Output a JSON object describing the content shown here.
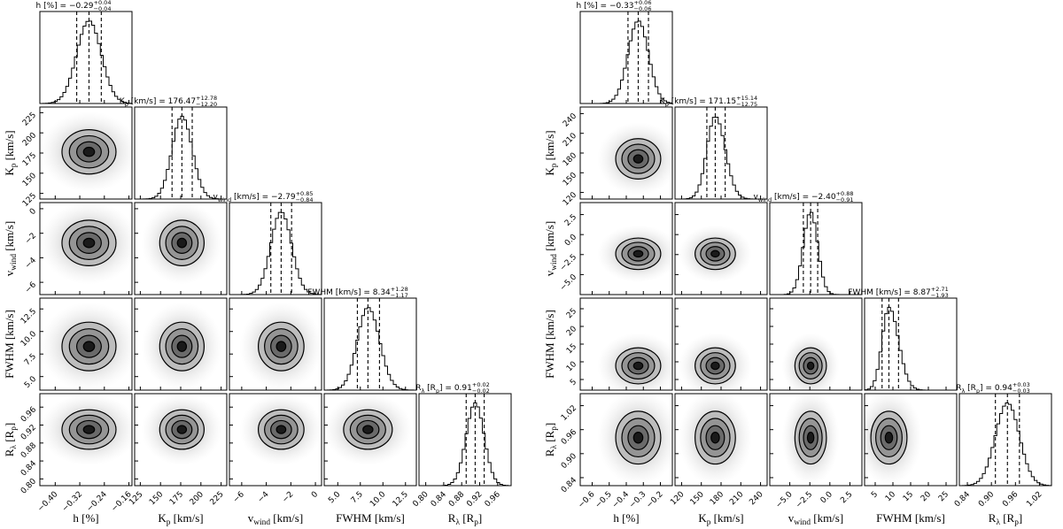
{
  "chart_data": [
    {
      "type": "corner",
      "parameters": [
        {
          "label": [
            {
              "t": "h [%]"
            }
          ],
          "title": [
            {
              "t": "h [%] = −0.29"
            }
          ],
          "error_labels": [
            "+0.04",
            "−0.04"
          ],
          "median": -0.29,
          "errors": [
            0.04,
            0.04
          ],
          "lim": [
            -0.45,
            -0.15
          ],
          "ticks": [
            {
              "value": -0.4,
              "label": "−0.40"
            },
            {
              "value": -0.32,
              "label": "−0.32"
            },
            {
              "value": -0.24,
              "label": "−0.24"
            },
            {
              "value": -0.16,
              "label": "−0.16"
            }
          ]
        },
        {
          "label": [
            {
              "t": "K"
            },
            {
              "t": "p",
              "sub": true
            },
            {
              "t": " [km/s]"
            }
          ],
          "title": [
            {
              "t": "K"
            },
            {
              "t": "p",
              "sub": true
            },
            {
              "t": " [km/s] = 176.47"
            }
          ],
          "error_labels": [
            "+12.78",
            "−12.20"
          ],
          "median": 176.47,
          "errors": [
            12.78,
            12.2
          ],
          "lim": [
            118,
            232
          ],
          "ticks": [
            125,
            150,
            175,
            200,
            225
          ]
        },
        {
          "label": [
            {
              "t": "v"
            },
            {
              "t": "wind",
              "sub": true
            },
            {
              "t": " [km/s]"
            }
          ],
          "title": [
            {
              "t": "v"
            },
            {
              "t": "wind",
              "sub": true
            },
            {
              "t": " [km/s] = −2.79"
            }
          ],
          "error_labels": [
            "+0.85",
            "−0.84"
          ],
          "median": -2.79,
          "errors": [
            0.85,
            0.84
          ],
          "lim": [
            -7,
            0.5
          ],
          "ticks": [
            {
              "value": -6,
              "label": "−6"
            },
            {
              "value": -4,
              "label": "−4"
            },
            {
              "value": -2,
              "label": "−2"
            },
            0
          ]
        },
        {
          "label": [
            {
              "t": "FWHM [km/s]"
            }
          ],
          "title": [
            {
              "t": "FWHM [km/s] = 8.34"
            }
          ],
          "error_labels": [
            "+1.28",
            "−1.17"
          ],
          "median": 8.34,
          "errors": [
            1.28,
            1.17
          ],
          "lim": [
            3.5,
            13.7
          ],
          "ticks": [
            {
              "value": 5,
              "label": "5.0"
            },
            7.5,
            {
              "value": 10,
              "label": "10.0"
            },
            12.5
          ]
        },
        {
          "label": [
            {
              "t": "R"
            },
            {
              "t": "λ",
              "sub": true
            },
            {
              "t": " [R"
            },
            {
              "t": "p",
              "sub": true
            },
            {
              "t": "]"
            }
          ],
          "title": [
            {
              "t": "R"
            },
            {
              "t": "λ",
              "sub": true
            },
            {
              "t": " [R"
            },
            {
              "t": "p",
              "sub": true
            },
            {
              "t": "] = 0.91"
            }
          ],
          "error_labels": [
            "+0.02",
            "−0.02"
          ],
          "median": 0.91,
          "errors": [
            0.02,
            0.02
          ],
          "lim": [
            0.785,
            0.99
          ],
          "ticks": [
            {
              "value": 0.8,
              "label": "0.80"
            },
            0.84,
            0.88,
            0.92,
            0.96
          ]
        }
      ]
    },
    {
      "type": "corner",
      "parameters": [
        {
          "label": [
            {
              "t": "h [%]"
            }
          ],
          "title": [
            {
              "t": "h [%] = −0.33"
            }
          ],
          "error_labels": [
            "+0.06",
            "−0.06"
          ],
          "median": -0.33,
          "errors": [
            0.06,
            0.06
          ],
          "lim": [
            -0.67,
            -0.13
          ],
          "ticks": [
            {
              "value": -0.6,
              "label": "−0.6"
            },
            {
              "value": -0.5,
              "label": "−0.5"
            },
            {
              "value": -0.4,
              "label": "−0.4"
            },
            {
              "value": -0.3,
              "label": "−0.3"
            },
            {
              "value": -0.2,
              "label": "−0.2"
            }
          ]
        },
        {
          "label": [
            {
              "t": "K"
            },
            {
              "t": "p",
              "sub": true
            },
            {
              "t": " [km/s]"
            }
          ],
          "title": [
            {
              "t": "K"
            },
            {
              "t": "p",
              "sub": true
            },
            {
              "t": " [km/s] = 171.15"
            }
          ],
          "error_labels": [
            "+15.14",
            "−12.75"
          ],
          "median": 171.15,
          "errors": [
            15.14,
            12.75
          ],
          "lim": [
            110,
            250
          ],
          "ticks": [
            120,
            150,
            180,
            210,
            240
          ]
        },
        {
          "label": [
            {
              "t": "v"
            },
            {
              "t": "wind",
              "sub": true
            },
            {
              "t": " [km/s]"
            }
          ],
          "title": [
            {
              "t": "v"
            },
            {
              "t": "wind",
              "sub": true
            },
            {
              "t": " [km/s] = −2.40"
            }
          ],
          "error_labels": [
            "+0.88",
            "−0.91"
          ],
          "median": -2.4,
          "errors": [
            0.88,
            0.91
          ],
          "lim": [
            -7.5,
            4
          ],
          "ticks": [
            {
              "value": -5,
              "label": "−5.0"
            },
            {
              "value": -2.5,
              "label": "−2.5"
            },
            {
              "value": 0,
              "label": "0.0"
            },
            2.5
          ]
        },
        {
          "label": [
            {
              "t": "FWHM [km/s]"
            }
          ],
          "title": [
            {
              "t": "FWHM [km/s] = 8.87"
            }
          ],
          "error_labels": [
            "+2.71",
            "−1.93"
          ],
          "median": 8.87,
          "errors": [
            2.71,
            1.93
          ],
          "lim": [
            2,
            28
          ],
          "ticks": [
            5,
            10,
            15,
            20,
            25
          ]
        },
        {
          "label": [
            {
              "t": "R"
            },
            {
              "t": "λ",
              "sub": true
            },
            {
              "t": " [R"
            },
            {
              "t": "p",
              "sub": true
            },
            {
              "t": "]"
            }
          ],
          "title": [
            {
              "t": "R"
            },
            {
              "t": "λ",
              "sub": true
            },
            {
              "t": " [R"
            },
            {
              "t": "p",
              "sub": true
            },
            {
              "t": "] = 0.94"
            }
          ],
          "error_labels": [
            "+0.03",
            "−0.03"
          ],
          "median": 0.94,
          "errors": [
            0.03,
            0.03
          ],
          "lim": [
            0.82,
            1.05
          ],
          "ticks": [
            0.84,
            {
              "value": 0.9,
              "label": "0.90"
            },
            0.96,
            1.02
          ]
        }
      ]
    }
  ]
}
